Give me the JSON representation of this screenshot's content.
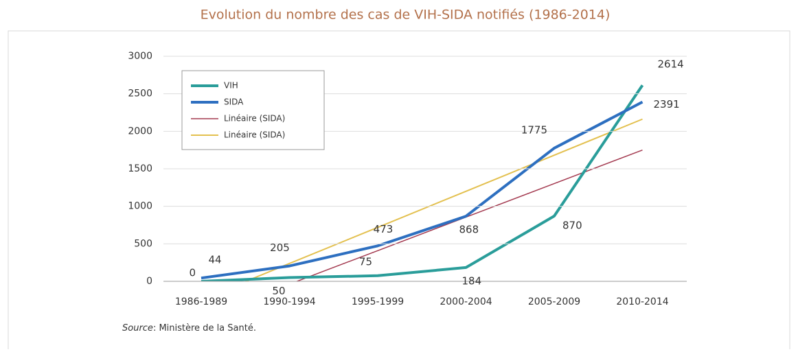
{
  "chart_data": {
    "type": "line",
    "title": "Evolution du nombre des cas de VIH-SIDA notifiés (1986-2014)",
    "categories": [
      "1986-1989",
      "1990-1994",
      "1995-1999",
      "2000-2004",
      "2005-2009",
      "2010-2014"
    ],
    "series": [
      {
        "name": "VIH",
        "color": "#2a9d9a",
        "width": 4,
        "values": [
          0,
          50,
          75,
          184,
          870,
          2614
        ],
        "labels": true
      },
      {
        "name": "SIDA",
        "color": "#2d6fc0",
        "width": 4,
        "values": [
          44,
          205,
          473,
          868,
          1775,
          2391
        ],
        "labels": true
      },
      {
        "name": "Linéaire (SIDA)",
        "color": "#a3394f",
        "width": 1.5,
        "values": [
          -485,
          -38,
          409,
          856,
          1303,
          1750
        ]
      },
      {
        "name": "Linéaire (SIDA)",
        "color": "#e3c04f",
        "width": 2,
        "values": [
          -243,
          238,
          719,
          1200,
          1681,
          2162
        ]
      }
    ],
    "ylim": [
      0,
      3000
    ],
    "yticks": [
      0,
      500,
      1000,
      1500,
      2000,
      2500,
      3000
    ],
    "grid": true,
    "legend": "top-left",
    "source_label": "Source",
    "source_text": ": Ministère de la Santé."
  }
}
